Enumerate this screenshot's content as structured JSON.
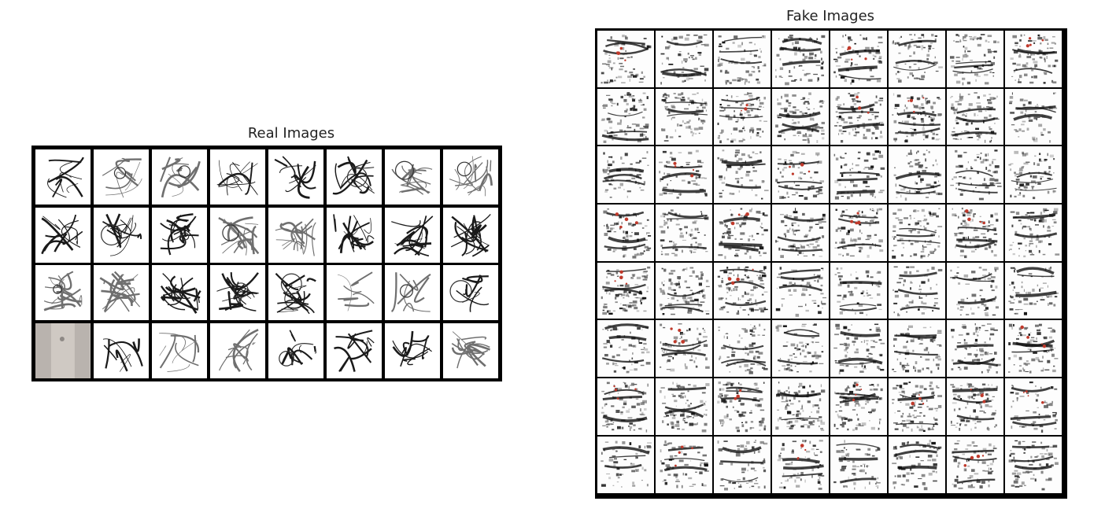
{
  "real": {
    "title": "Real Images",
    "rows": 4,
    "cols": 8
  },
  "fake": {
    "title": "Fake Images",
    "rows": 8,
    "cols": 8
  },
  "colors": {
    "background": "#ffffff",
    "grid_border": "#000000",
    "title_text": "#222222",
    "fake_accent": "#c0392b"
  }
}
